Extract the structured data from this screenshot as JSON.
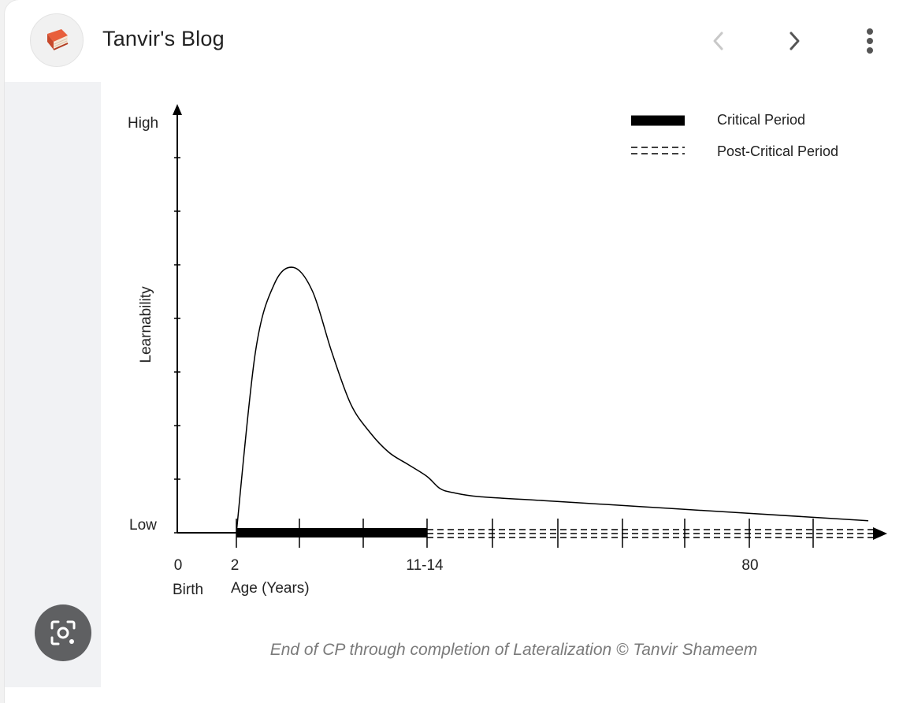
{
  "header": {
    "site_title": "Tanvir's Blog",
    "avatar_icon": "book-icon",
    "back_icon": "chevron-left-icon",
    "forward_icon": "chevron-right-icon",
    "menu_icon": "more-vert-icon"
  },
  "lens_button": {
    "icon": "visual-search-icon"
  },
  "chart_data": {
    "type": "line",
    "ylabel": "Learnability",
    "y_tick_labels": [
      "High",
      "Low"
    ],
    "x_tick_labels": [
      "0",
      "2",
      "11-14",
      "80"
    ],
    "x_sublabels": [
      "Birth",
      "Age (Years)"
    ],
    "legend": [
      {
        "label": "Critical Period",
        "style": "solid-thick"
      },
      {
        "label": "Post-Critical Period",
        "style": "dashed"
      }
    ],
    "legend_placement": "top-right",
    "caption": "End of CP through completion of Lateralization © Tanvir Shameem",
    "series": [
      {
        "x": [
          2,
          3,
          4,
          5,
          6,
          7,
          8,
          9,
          10,
          11,
          12,
          14,
          16,
          20,
          30,
          40,
          50,
          60,
          70,
          80
        ],
        "y": [
          0.0,
          0.45,
          0.62,
          0.66,
          0.6,
          0.45,
          0.32,
          0.25,
          0.2,
          0.17,
          0.14,
          0.11,
          0.1,
          0.09,
          0.08,
          0.07,
          0.06,
          0.05,
          0.04,
          0.03
        ]
      }
    ],
    "color": "#000000"
  }
}
